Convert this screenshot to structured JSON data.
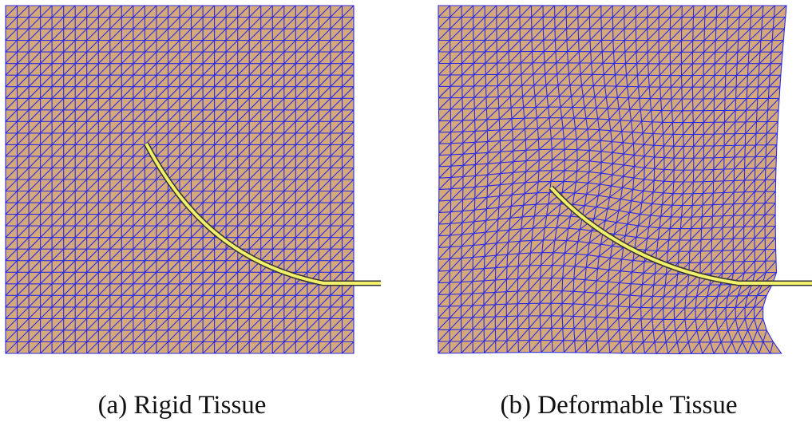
{
  "figure": {
    "subfigures": [
      {
        "caption": "(a) Rigid Tissue"
      },
      {
        "caption": "(b) Deformable Tissue"
      }
    ]
  }
}
